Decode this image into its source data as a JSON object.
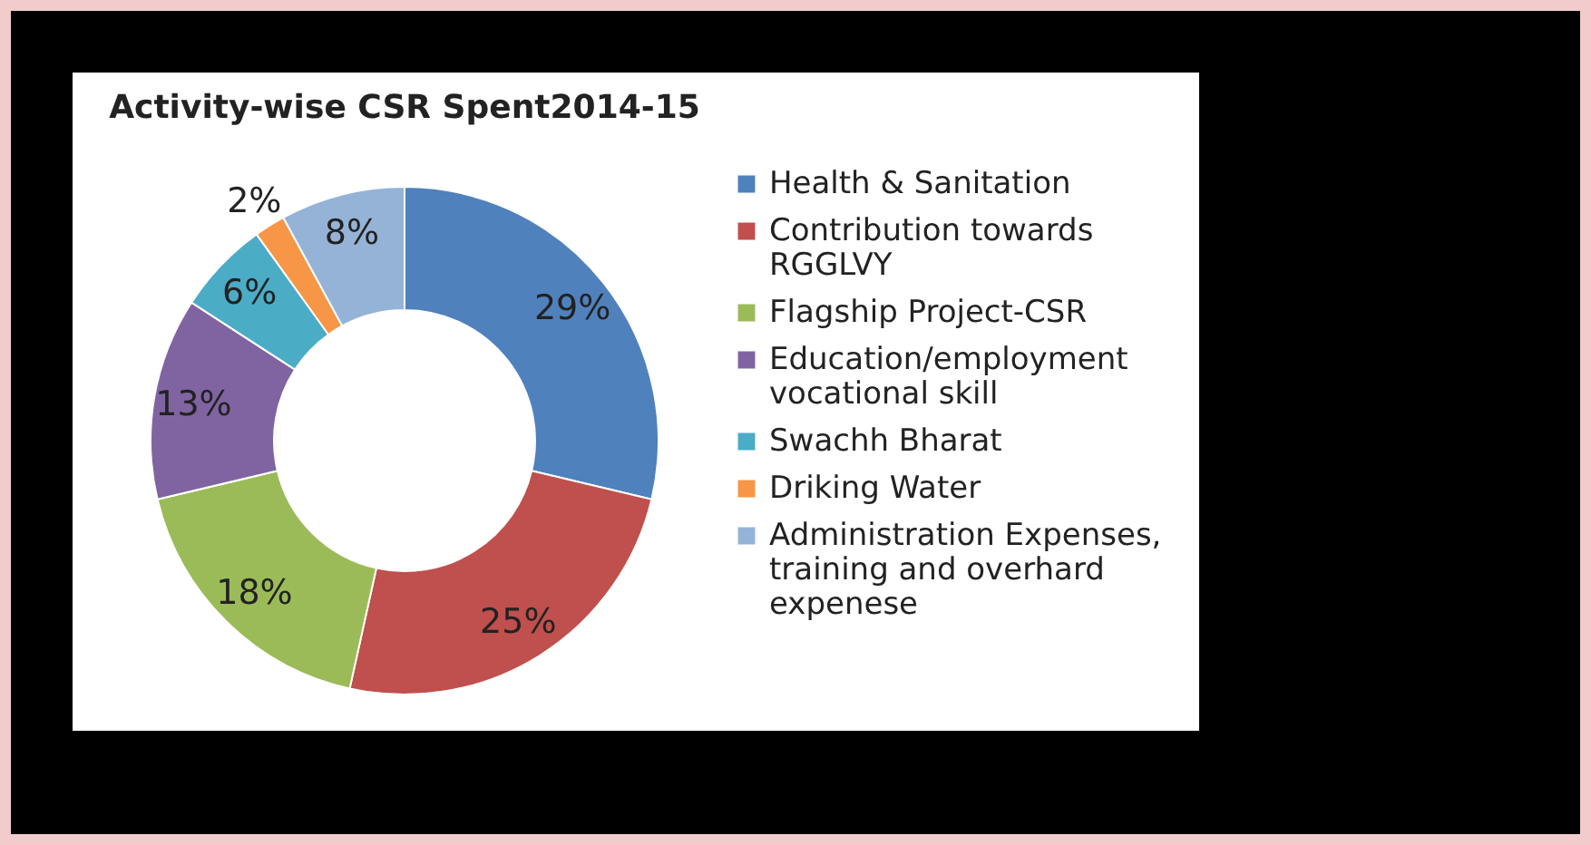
{
  "chart_data": {
    "type": "donut",
    "title": "Activity-wise CSR Spent2014-15",
    "categories": [
      "Health & Sanitation",
      "Contribution towards RGGLVY",
      "Flagship Project-CSR",
      "Education/employment vocational skill",
      "Swachh Bharat",
      "Driking Water",
      "Administration Expenses, training and overhard expenese"
    ],
    "values": [
      29,
      25,
      18,
      13,
      6,
      2,
      8
    ],
    "value_labels": [
      "29%",
      "25%",
      "18%",
      "13%",
      "6%",
      "2%",
      "8%"
    ],
    "colors": [
      "#4f81bd",
      "#c0504d",
      "#9bbb59",
      "#8064a2",
      "#4bacc6",
      "#f79646",
      "#95b3d7"
    ],
    "legend": "right"
  }
}
